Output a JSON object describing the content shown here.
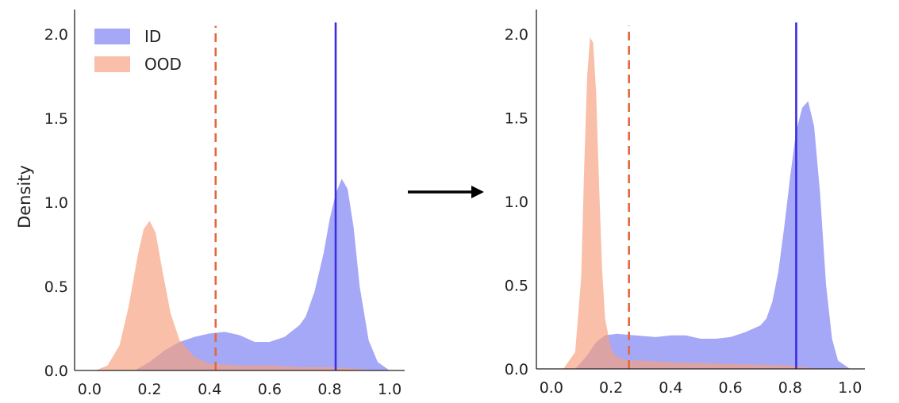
{
  "chart_data": [
    {
      "type": "area",
      "title": "",
      "xlabel": "",
      "ylabel": "Density",
      "xlim": [
        -0.05,
        1.05
      ],
      "ylim": [
        0,
        2.1
      ],
      "xticks": [
        "0.0",
        "0.2",
        "0.4",
        "0.6",
        "0.8",
        "1.0"
      ],
      "yticks": [
        "0.0",
        "0.5",
        "1.0",
        "1.5",
        "2.0"
      ],
      "legend": {
        "position": "top-left",
        "entries": [
          "ID",
          "OOD"
        ]
      },
      "series": [
        {
          "name": "ID",
          "color": "#7b7ff2",
          "x": [
            0.15,
            0.2,
            0.25,
            0.3,
            0.35,
            0.4,
            0.45,
            0.5,
            0.55,
            0.6,
            0.65,
            0.7,
            0.72,
            0.75,
            0.78,
            0.8,
            0.82,
            0.84,
            0.86,
            0.88,
            0.9,
            0.93,
            0.96,
            1.0
          ],
          "values": [
            0.0,
            0.05,
            0.12,
            0.17,
            0.2,
            0.22,
            0.23,
            0.21,
            0.17,
            0.17,
            0.2,
            0.27,
            0.32,
            0.47,
            0.7,
            0.9,
            1.05,
            1.14,
            1.08,
            0.85,
            0.5,
            0.18,
            0.05,
            0.0
          ]
        },
        {
          "name": "OOD",
          "color": "#f6a07f",
          "x": [
            0.02,
            0.06,
            0.1,
            0.13,
            0.16,
            0.18,
            0.2,
            0.22,
            0.24,
            0.27,
            0.3,
            0.35,
            0.4,
            0.5,
            0.6,
            0.7,
            0.8,
            0.9,
            0.95
          ],
          "values": [
            0.0,
            0.03,
            0.15,
            0.38,
            0.68,
            0.84,
            0.89,
            0.82,
            0.62,
            0.34,
            0.18,
            0.08,
            0.04,
            0.03,
            0.03,
            0.02,
            0.02,
            0.01,
            0.0
          ]
        }
      ],
      "vlines": [
        {
          "x": 0.42,
          "style": "dashed",
          "color": "#e4683e"
        },
        {
          "x": 0.82,
          "style": "solid",
          "color": "#3a2ee0"
        }
      ]
    },
    {
      "type": "area",
      "title": "",
      "xlabel": "",
      "ylabel": "",
      "xlim": [
        -0.05,
        1.05
      ],
      "ylim": [
        0,
        2.1
      ],
      "xticks": [
        "0.0",
        "0.2",
        "0.4",
        "0.6",
        "0.8",
        "1.0"
      ],
      "yticks": [
        "0.0",
        "0.5",
        "1.0",
        "1.5",
        "2.0"
      ],
      "series": [
        {
          "name": "ID",
          "color": "#7b7ff2",
          "x": [
            0.08,
            0.12,
            0.15,
            0.18,
            0.22,
            0.28,
            0.35,
            0.4,
            0.45,
            0.5,
            0.55,
            0.6,
            0.65,
            0.7,
            0.72,
            0.74,
            0.76,
            0.78,
            0.8,
            0.82,
            0.84,
            0.86,
            0.88,
            0.9,
            0.92,
            0.94,
            0.96,
            1.0
          ],
          "values": [
            0.0,
            0.08,
            0.16,
            0.2,
            0.21,
            0.2,
            0.19,
            0.2,
            0.2,
            0.18,
            0.18,
            0.19,
            0.22,
            0.26,
            0.3,
            0.4,
            0.58,
            0.85,
            1.15,
            1.42,
            1.56,
            1.6,
            1.45,
            1.05,
            0.5,
            0.18,
            0.05,
            0.0
          ]
        },
        {
          "name": "OOD",
          "color": "#f6a07f",
          "x": [
            0.04,
            0.08,
            0.1,
            0.11,
            0.12,
            0.13,
            0.14,
            0.15,
            0.16,
            0.17,
            0.18,
            0.2,
            0.22,
            0.26,
            0.3,
            0.4,
            0.6,
            0.8,
            0.9
          ],
          "values": [
            0.0,
            0.1,
            0.55,
            1.2,
            1.75,
            1.98,
            1.95,
            1.65,
            1.1,
            0.6,
            0.3,
            0.12,
            0.07,
            0.05,
            0.05,
            0.04,
            0.03,
            0.02,
            0.0
          ]
        }
      ],
      "vlines": [
        {
          "x": 0.26,
          "style": "dashed",
          "color": "#e4683e"
        },
        {
          "x": 0.82,
          "style": "solid",
          "color": "#3a2ee0"
        }
      ]
    }
  ],
  "arrow": {
    "color": "#000000"
  }
}
